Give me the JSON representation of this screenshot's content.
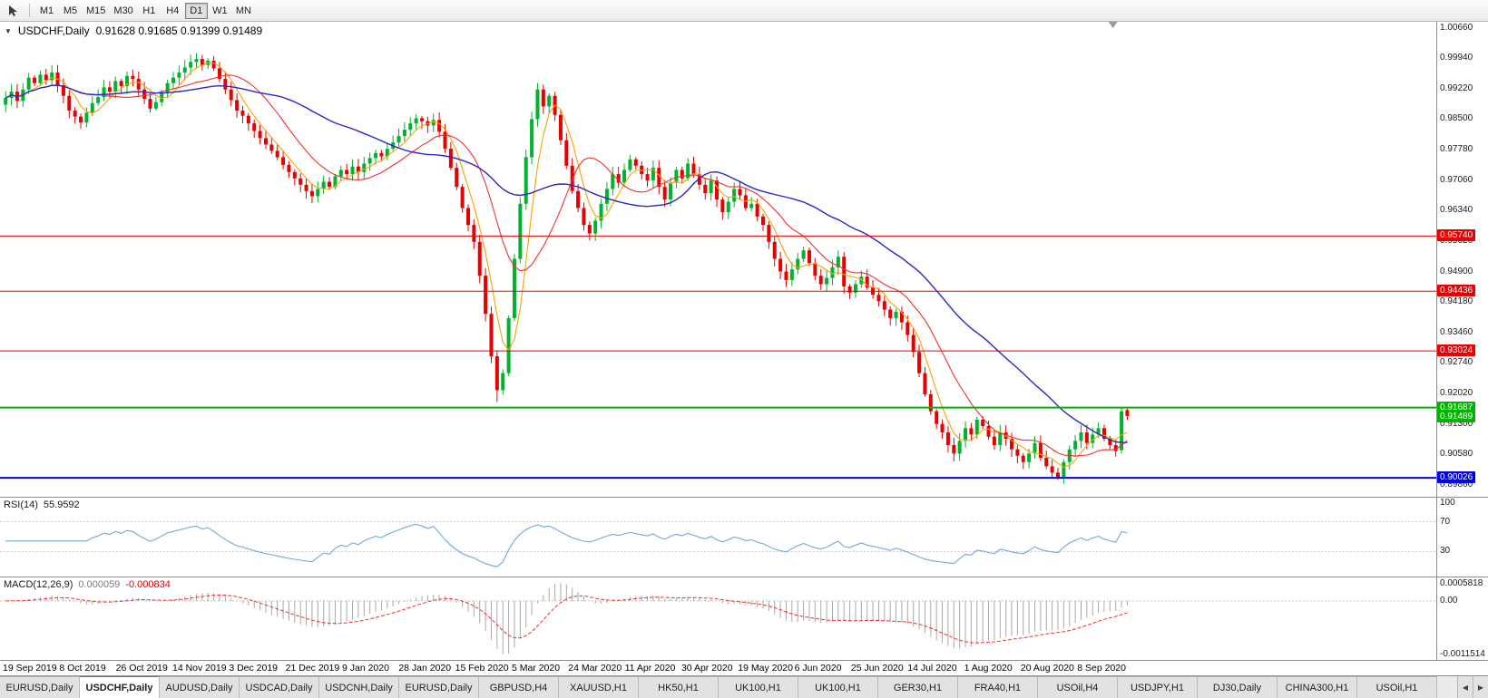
{
  "icons": {
    "dropdown": "▼",
    "tabs_scroll_left": "◀",
    "tabs_scroll_right": "▶"
  },
  "toolbar": {
    "timeframes": [
      {
        "label": "M1",
        "active": false
      },
      {
        "label": "M5",
        "active": false
      },
      {
        "label": "M15",
        "active": false
      },
      {
        "label": "M30",
        "active": false
      },
      {
        "label": "H1",
        "active": false
      },
      {
        "label": "H4",
        "active": false
      },
      {
        "label": "D1",
        "active": true
      },
      {
        "label": "W1",
        "active": false
      },
      {
        "label": "MN",
        "active": false
      }
    ]
  },
  "chart_header": {
    "symbol": "USDCHF,Daily",
    "ohlc": "0.91628 0.91685 0.91399 0.91489"
  },
  "chart_data": {
    "type": "candlestick",
    "symbol": "USDCHF",
    "timeframe": "Daily",
    "current_bar": {
      "open": 0.91628,
      "high": 0.91685,
      "low": 0.91399,
      "close": 0.91489
    },
    "y_range": [
      0.8958,
      1.008
    ],
    "x_data_fraction": 0.785,
    "y_axis_labels": [
      "1.00660",
      "0.99940",
      "0.99220",
      "0.98500",
      "0.97780",
      "0.97060",
      "0.96340",
      "0.95620",
      "0.94900",
      "0.94180",
      "0.93460",
      "0.92740",
      "0.92020",
      "0.91300",
      "0.90580",
      "0.89860"
    ],
    "x_labels": [
      "19 Sep 2019",
      "8 Oct 2019",
      "26 Oct 2019",
      "14 Nov 2019",
      "3 Dec 2019",
      "21 Dec 2019",
      "9 Jan 2020",
      "28 Jan 2020",
      "15 Feb 2020",
      "5 Mar 2020",
      "24 Mar 2020",
      "11 Apr 2020",
      "30 Apr 2020",
      "19 May 2020",
      "6 Jun 2020",
      "25 Jun 2020",
      "14 Jul 2020",
      "1 Aug 2020",
      "20 Aug 2020",
      "8 Sep 2020"
    ],
    "closes": [
      0.99,
      0.9915,
      0.9893,
      0.992,
      0.9948,
      0.9935,
      0.9955,
      0.9942,
      0.996,
      0.993,
      0.9905,
      0.987,
      0.9856,
      0.9842,
      0.9865,
      0.9888,
      0.9902,
      0.9925,
      0.9915,
      0.994,
      0.9928,
      0.9952,
      0.9945,
      0.992,
      0.9898,
      0.9875,
      0.989,
      0.9912,
      0.9935,
      0.9948,
      0.996,
      0.9972,
      0.9985,
      0.9992,
      0.9978,
      0.9988,
      0.997,
      0.9945,
      0.992,
      0.9895,
      0.987,
      0.9858,
      0.984,
      0.9822,
      0.9805,
      0.979,
      0.9775,
      0.976,
      0.9742,
      0.9725,
      0.971,
      0.9695,
      0.968,
      0.9668,
      0.9685,
      0.9702,
      0.969,
      0.9715,
      0.973,
      0.972,
      0.9738,
      0.9725,
      0.9745,
      0.9758,
      0.977,
      0.9762,
      0.978,
      0.9795,
      0.981,
      0.9825,
      0.984,
      0.9852,
      0.9845,
      0.9835,
      0.9848,
      0.982,
      0.978,
      0.9735,
      0.969,
      0.964,
      0.96,
      0.956,
      0.948,
      0.939,
      0.929,
      0.921,
      0.925,
      0.938,
      0.952,
      0.965,
      0.976,
      0.985,
      0.992,
      0.988,
      0.9905,
      0.986,
      0.98,
      0.974,
      0.968,
      0.964,
      0.96,
      0.958,
      0.961,
      0.965,
      0.9685,
      0.972,
      0.97,
      0.973,
      0.9755,
      0.974,
      0.972,
      0.9705,
      0.9735,
      0.969,
      0.966,
      0.97,
      0.973,
      0.971,
      0.9745,
      0.972,
      0.9695,
      0.9675,
      0.9705,
      0.966,
      0.963,
      0.9655,
      0.9685,
      0.967,
      0.964,
      0.965,
      0.962,
      0.96,
      0.956,
      0.952,
      0.949,
      0.947,
      0.9495,
      0.952,
      0.954,
      0.951,
      0.948,
      0.946,
      0.9475,
      0.95,
      0.9525,
      0.9455,
      0.944,
      0.946,
      0.9478,
      0.9452,
      0.9435,
      0.942,
      0.94,
      0.938,
      0.9395,
      0.937,
      0.934,
      0.93,
      0.925,
      0.92,
      0.916,
      0.913,
      0.911,
      0.908,
      0.906,
      0.909,
      0.912,
      0.9105,
      0.914,
      0.9125,
      0.91,
      0.908,
      0.911,
      0.9095,
      0.907,
      0.9055,
      0.904,
      0.906,
      0.9085,
      0.905,
      0.903,
      0.9015,
      0.9005,
      0.904,
      0.907,
      0.909,
      0.911,
      0.9085,
      0.9105,
      0.912,
      0.9095,
      0.908,
      0.9066,
      0.916,
      0.91489
    ],
    "bar_overrides": {
      "85": {
        "l": 0.9182
      },
      "182": {
        "l": 0.8998
      },
      "193": {
        "o": 0.9068,
        "h": 0.91687,
        "l": 0.906
      },
      "194": {
        "o": 0.91628,
        "h": 0.91685,
        "l": 0.91399
      }
    },
    "candle_colors": {
      "bull": "#00b22d",
      "bear": "#e60000"
    },
    "moving_averages": [
      {
        "period": 5,
        "color": "#ffa000"
      },
      {
        "period": 13,
        "color": "#f03030"
      },
      {
        "period": 34,
        "color": "#2828c8"
      }
    ],
    "levels": [
      {
        "price": 0.9574,
        "label": "0.95740",
        "color": "#e80000",
        "width": 1
      },
      {
        "price": 0.94436,
        "label": "0.94436",
        "color": "#e80000",
        "width": 1
      },
      {
        "price": 0.93024,
        "label": "0.93024",
        "color": "#e80000",
        "width": 1
      },
      {
        "price": 0.91687,
        "label": "0.91687",
        "color": "#00b400",
        "width": 2
      },
      {
        "price": 0.90026,
        "label": "0.90026",
        "color": "#0000e8",
        "width": 2
      }
    ],
    "current_price": {
      "price": 0.91489,
      "label": "0.91489",
      "color": "#00b400"
    }
  },
  "rsi": {
    "label": "RSI(14)",
    "value": "55.9592",
    "period": 14,
    "levels": [
      70,
      30
    ],
    "scale_labels": [
      "100",
      "70",
      "30"
    ],
    "line_color": "#70a8dc"
  },
  "macd": {
    "label": "MACD(12,26,9)",
    "main_value": "0.000059",
    "signal_value": "-0.000834",
    "fast": 12,
    "slow": 26,
    "signal": 9,
    "scale_labels": [
      "0.0005818",
      "0.00",
      "-0.0011514"
    ],
    "histogram_color": "#a8a8a8",
    "signal_color": "#f03030"
  },
  "tabs": [
    {
      "label": "EURUSD,Daily",
      "active": false
    },
    {
      "label": "USDCHF,Daily",
      "active": true
    },
    {
      "label": "AUDUSD,Daily",
      "active": false
    },
    {
      "label": "USDCAD,Daily",
      "active": false
    },
    {
      "label": "USDCNH,Daily",
      "active": false
    },
    {
      "label": "EURUSD,Daily",
      "active": false
    },
    {
      "label": "GBPUSD,H4",
      "active": false
    },
    {
      "label": "XAUUSD,H1",
      "active": false
    },
    {
      "label": "HK50,H1",
      "active": false
    },
    {
      "label": "UK100,H1",
      "active": false
    },
    {
      "label": "UK100,H1",
      "active": false
    },
    {
      "label": "GER30,H1",
      "active": false
    },
    {
      "label": "FRA40,H1",
      "active": false
    },
    {
      "label": "USOil,H4",
      "active": false
    },
    {
      "label": "USDJPY,H1",
      "active": false
    },
    {
      "label": "DJ30,Daily",
      "active": false
    },
    {
      "label": "CHINA300,H1",
      "active": false
    },
    {
      "label": "USOil,H1",
      "active": false
    }
  ]
}
